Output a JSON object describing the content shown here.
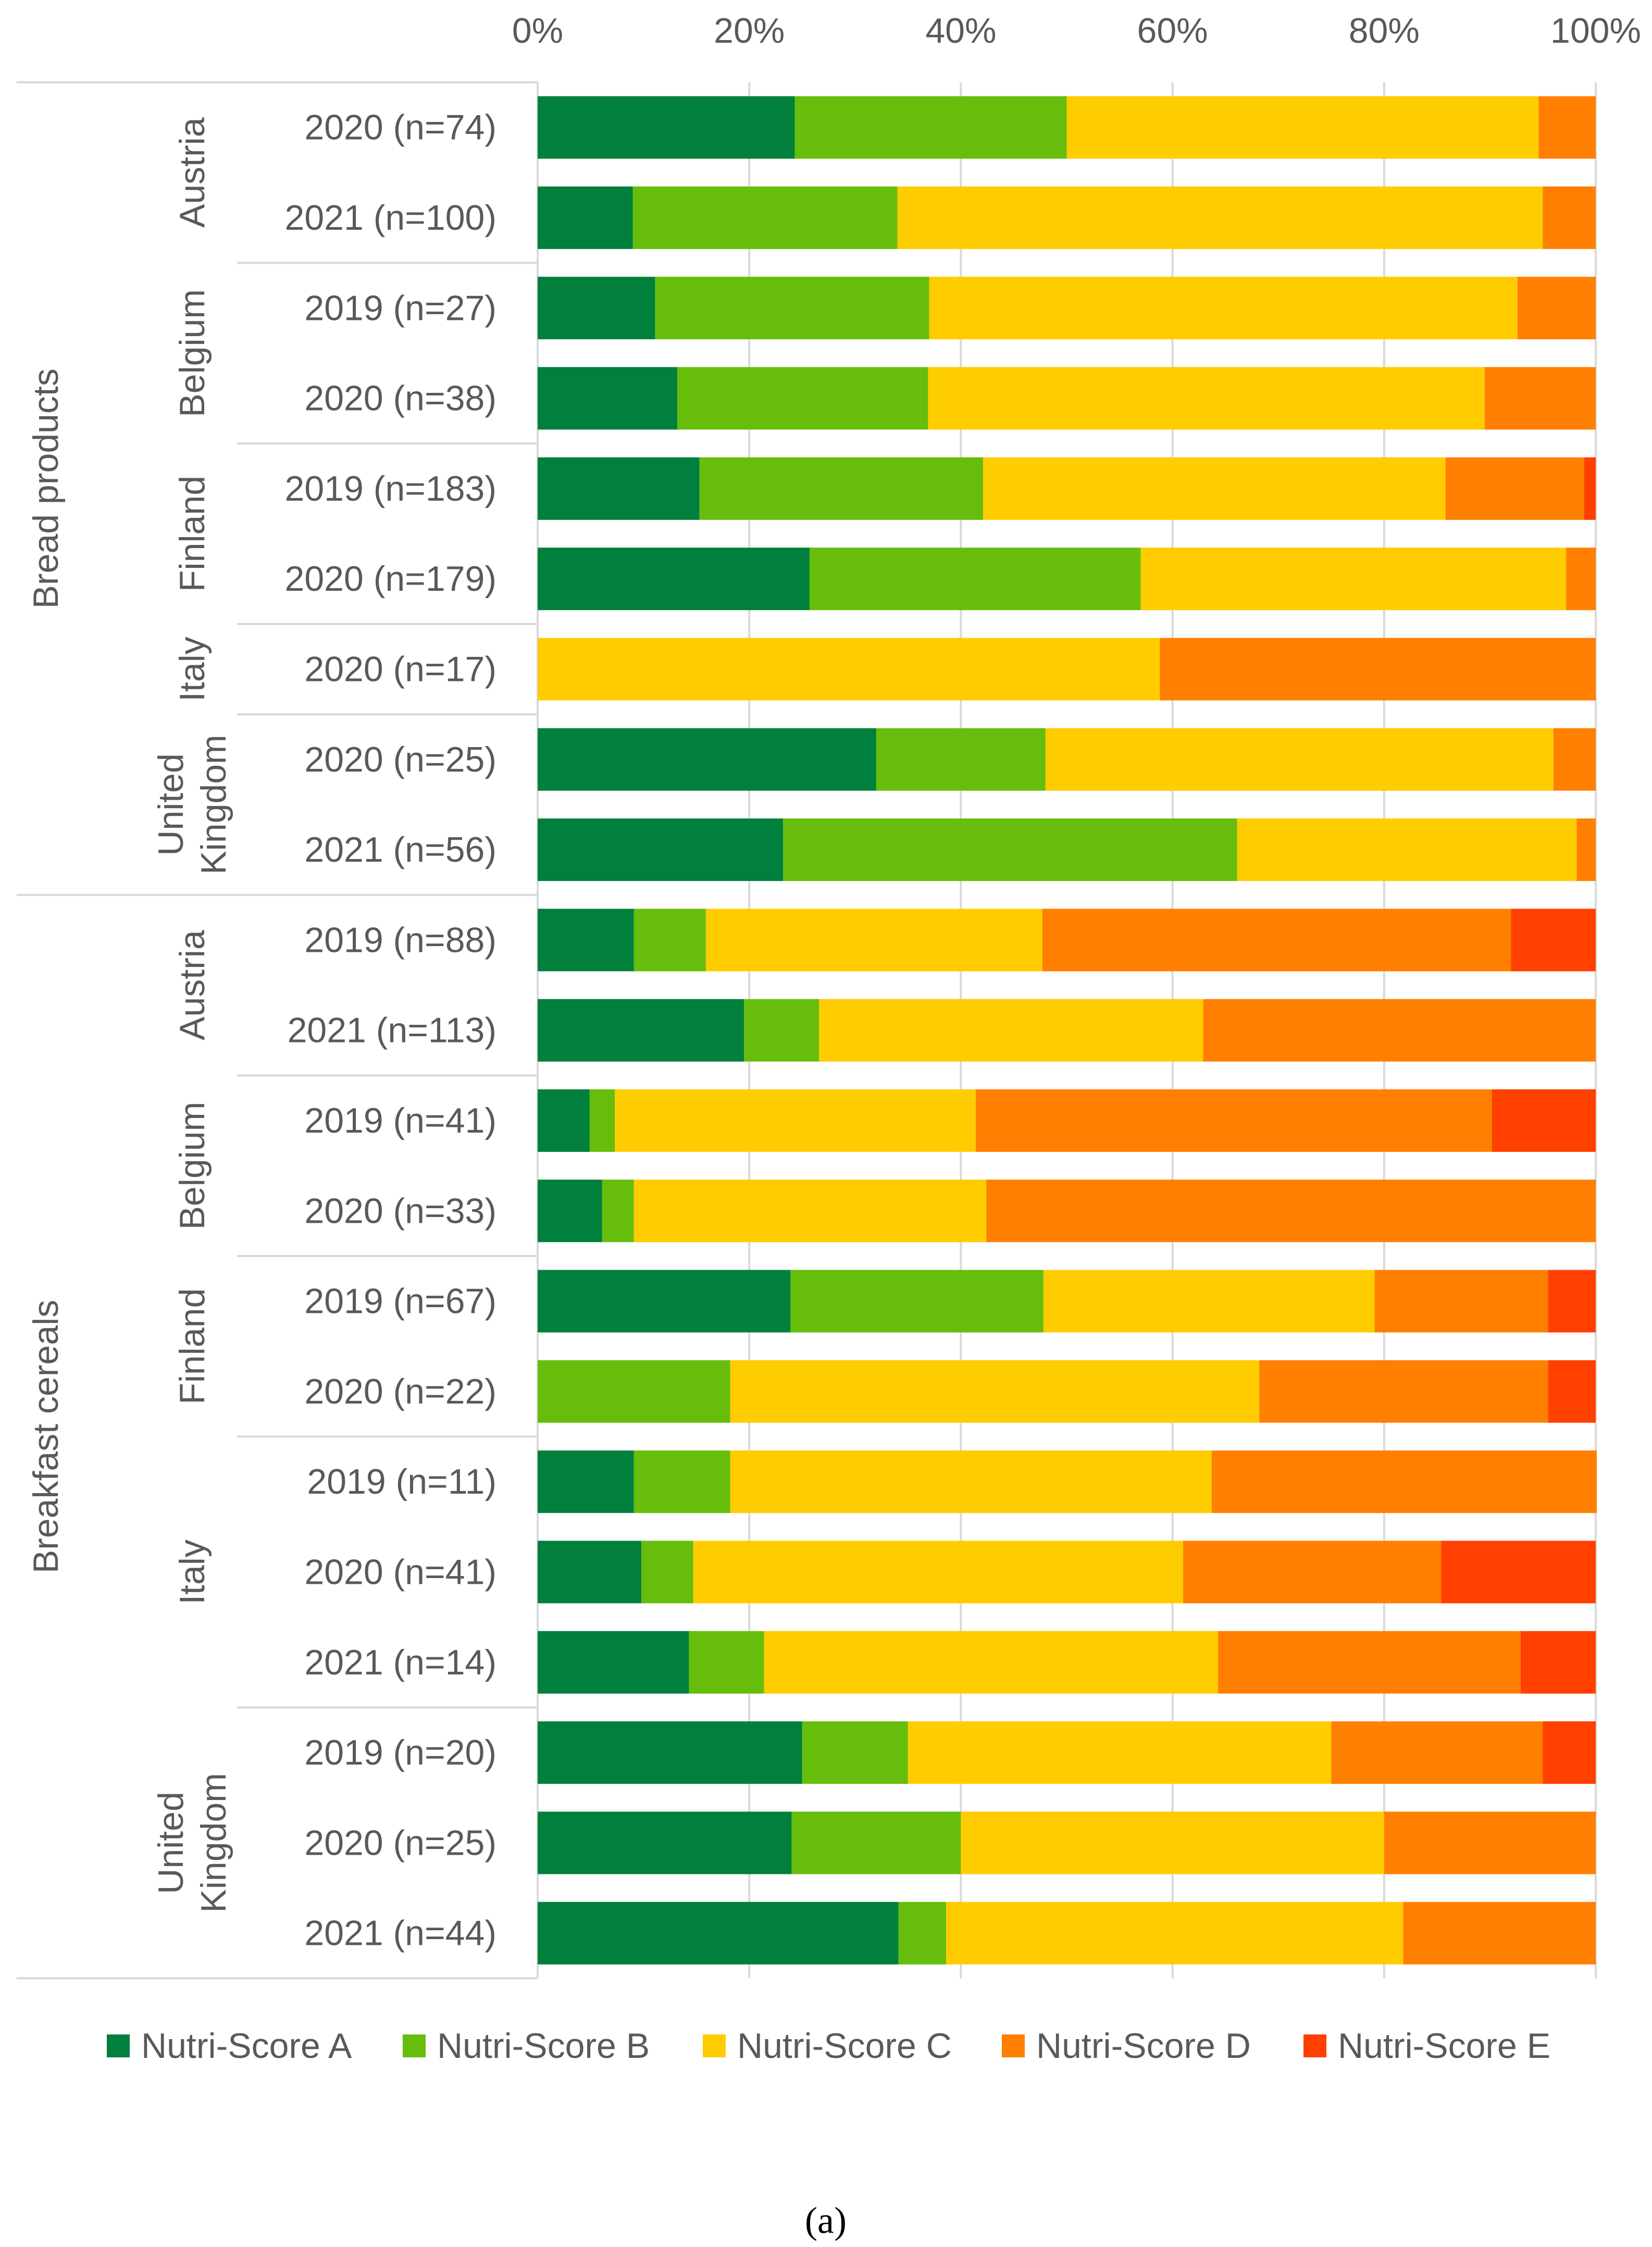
{
  "chart_data": {
    "type": "bar",
    "orientation": "horizontal",
    "stacked": "percent",
    "title": "",
    "xlabel": "",
    "ylabel": "",
    "xlim": [
      0,
      100
    ],
    "x_ticks": [
      "0%",
      "20%",
      "40%",
      "60%",
      "80%",
      "100%"
    ],
    "grid": true,
    "legend_position": "bottom",
    "caption": "(a)",
    "series": [
      {
        "name": "Nutri-Score A",
        "color": "#00803C"
      },
      {
        "name": "Nutri-Score B",
        "color": "#66BD0C"
      },
      {
        "name": "Nutri-Score C",
        "color": "#FFCC00"
      },
      {
        "name": "Nutri-Score D",
        "color": "#FF8000"
      },
      {
        "name": "Nutri-Score E",
        "color": "#FF4000"
      }
    ],
    "groups": [
      {
        "name": "Bread products",
        "countries": [
          {
            "name": "Austria",
            "rows": [
              {
                "label": "2020 (n=74)",
                "values": [
                  24.3,
                  25.7,
                  44.6,
                  5.4,
                  0
                ]
              },
              {
                "label": "2021 (n=100)",
                "values": [
                  9,
                  25,
                  61,
                  5,
                  0
                ]
              }
            ]
          },
          {
            "name": "Belgium",
            "rows": [
              {
                "label": "2019 (n=27)",
                "values": [
                  11.1,
                  25.9,
                  55.6,
                  7.4,
                  0
                ]
              },
              {
                "label": "2020 (n=38)",
                "values": [
                  13.2,
                  23.7,
                  52.6,
                  10.5,
                  0
                ]
              }
            ]
          },
          {
            "name": "Finland",
            "rows": [
              {
                "label": "2019 (n=183)",
                "values": [
                  15.3,
                  26.8,
                  43.7,
                  13.1,
                  1.1
                ]
              },
              {
                "label": "2020 (n=179)",
                "values": [
                  25.7,
                  31.3,
                  40.2,
                  2.8,
                  0
                ]
              }
            ]
          },
          {
            "name": "Italy",
            "rows": [
              {
                "label": "2020 (n=17)",
                "values": [
                  0,
                  0,
                  58.8,
                  41.2,
                  0
                ]
              }
            ]
          },
          {
            "name": "United Kingdom",
            "name_lines": [
              "United",
              "Kingdom"
            ],
            "rows": [
              {
                "label": "2020 (n=25)",
                "values": [
                  32,
                  16,
                  48,
                  4,
                  0
                ]
              },
              {
                "label": "2021 (n=56)",
                "values": [
                  23.2,
                  42.9,
                  32.1,
                  1.8,
                  0
                ]
              }
            ]
          }
        ]
      },
      {
        "name": "Breakfast cereals",
        "countries": [
          {
            "name": "Austria",
            "rows": [
              {
                "label": "2019 (n=88)",
                "values": [
                  9.1,
                  6.8,
                  31.8,
                  44.3,
                  8.0
                ]
              },
              {
                "label": "2021 (n=113)",
                "values": [
                  19.5,
                  7.1,
                  36.3,
                  37.1,
                  0
                ]
              }
            ]
          },
          {
            "name": "Belgium",
            "rows": [
              {
                "label": "2019 (n=41)",
                "values": [
                  4.9,
                  2.4,
                  34.1,
                  48.8,
                  9.8
                ]
              },
              {
                "label": "2020 (n=33)",
                "values": [
                  6.1,
                  3.0,
                  33.3,
                  57.6,
                  0
                ]
              }
            ]
          },
          {
            "name": "Finland",
            "rows": [
              {
                "label": "2019 (n=67)",
                "values": [
                  23.9,
                  23.9,
                  31.3,
                  16.4,
                  4.5
                ]
              },
              {
                "label": "2020 (n=22)",
                "values": [
                  0,
                  18.2,
                  50,
                  27.3,
                  4.5
                ]
              }
            ]
          },
          {
            "name": "Italy",
            "rows": [
              {
                "label": "2019 (n=11)",
                "values": [
                  9.1,
                  9.1,
                  45.5,
                  36.4,
                  0
                ]
              },
              {
                "label": "2020 (n=41)",
                "values": [
                  9.8,
                  4.9,
                  46.3,
                  24.4,
                  14.6
                ]
              },
              {
                "label": "2021 (n=14)",
                "values": [
                  14.3,
                  7.1,
                  42.9,
                  28.6,
                  7.1
                ]
              }
            ]
          },
          {
            "name": "United Kingdom",
            "name_lines": [
              "United",
              "Kingdom"
            ],
            "rows": [
              {
                "label": "2019 (n=20)",
                "values": [
                  25,
                  10,
                  40,
                  20,
                  5
                ]
              },
              {
                "label": "2020 (n=25)",
                "values": [
                  24,
                  16,
                  40,
                  20,
                  0
                ]
              },
              {
                "label": "2021 (n=44)",
                "values": [
                  34.1,
                  4.5,
                  43.2,
                  18.2,
                  0
                ]
              }
            ]
          }
        ]
      }
    ]
  }
}
